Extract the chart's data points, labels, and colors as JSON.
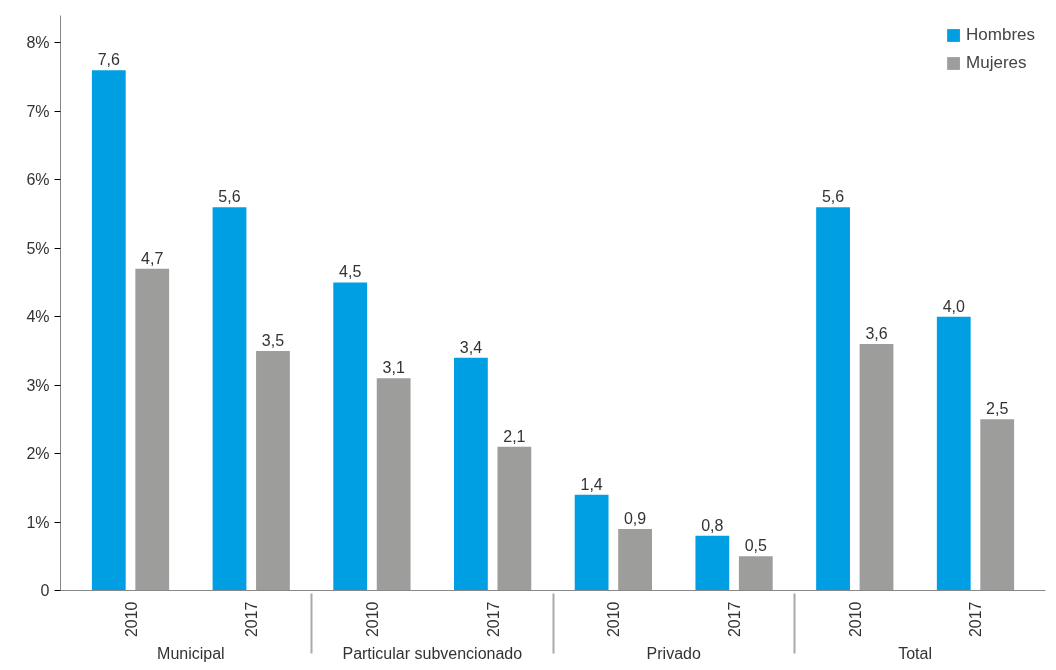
{
  "chart_data": {
    "type": "bar",
    "categories": [
      "2010",
      "2017",
      "2010",
      "2017",
      "2010",
      "2017",
      "2010",
      "2017"
    ],
    "annotations": [
      "Municipal",
      "Particular subvencionado",
      "Privado",
      "Total"
    ],
    "series": [
      {
        "name": "Hombres",
        "color": "#009fe3",
        "values": [
          7.6,
          5.6,
          4.5,
          3.4,
          1.4,
          0.8,
          5.6,
          4.0
        ],
        "value_labels": [
          "7,6",
          "5,6",
          "4,5",
          "3,4",
          "1,4",
          "0,8",
          "5,6",
          "4,0"
        ]
      },
      {
        "name": "Mujeres",
        "color": "#9d9d9c",
        "values": [
          4.7,
          3.5,
          3.1,
          2.1,
          0.9,
          0.5,
          3.6,
          2.5
        ],
        "value_labels": [
          "4,7",
          "3,5",
          "3,1",
          "2,1",
          "0,9",
          "0,5",
          "3,6",
          "2,5"
        ]
      }
    ],
    "ylim": [
      0,
      8.4
    ],
    "yticks": [
      0,
      {
        "value": 1,
        "label": "1%"
      },
      {
        "value": 2,
        "label": "2%"
      },
      {
        "value": 3,
        "label": "3%"
      },
      {
        "value": 4,
        "label": "4%"
      },
      {
        "value": 5,
        "label": "5%"
      },
      {
        "value": 6,
        "label": "6%"
      },
      {
        "value": 7,
        "label": "7%"
      },
      {
        "value": 8,
        "label": "8%"
      }
    ],
    "grid": false,
    "legend": "top right"
  }
}
